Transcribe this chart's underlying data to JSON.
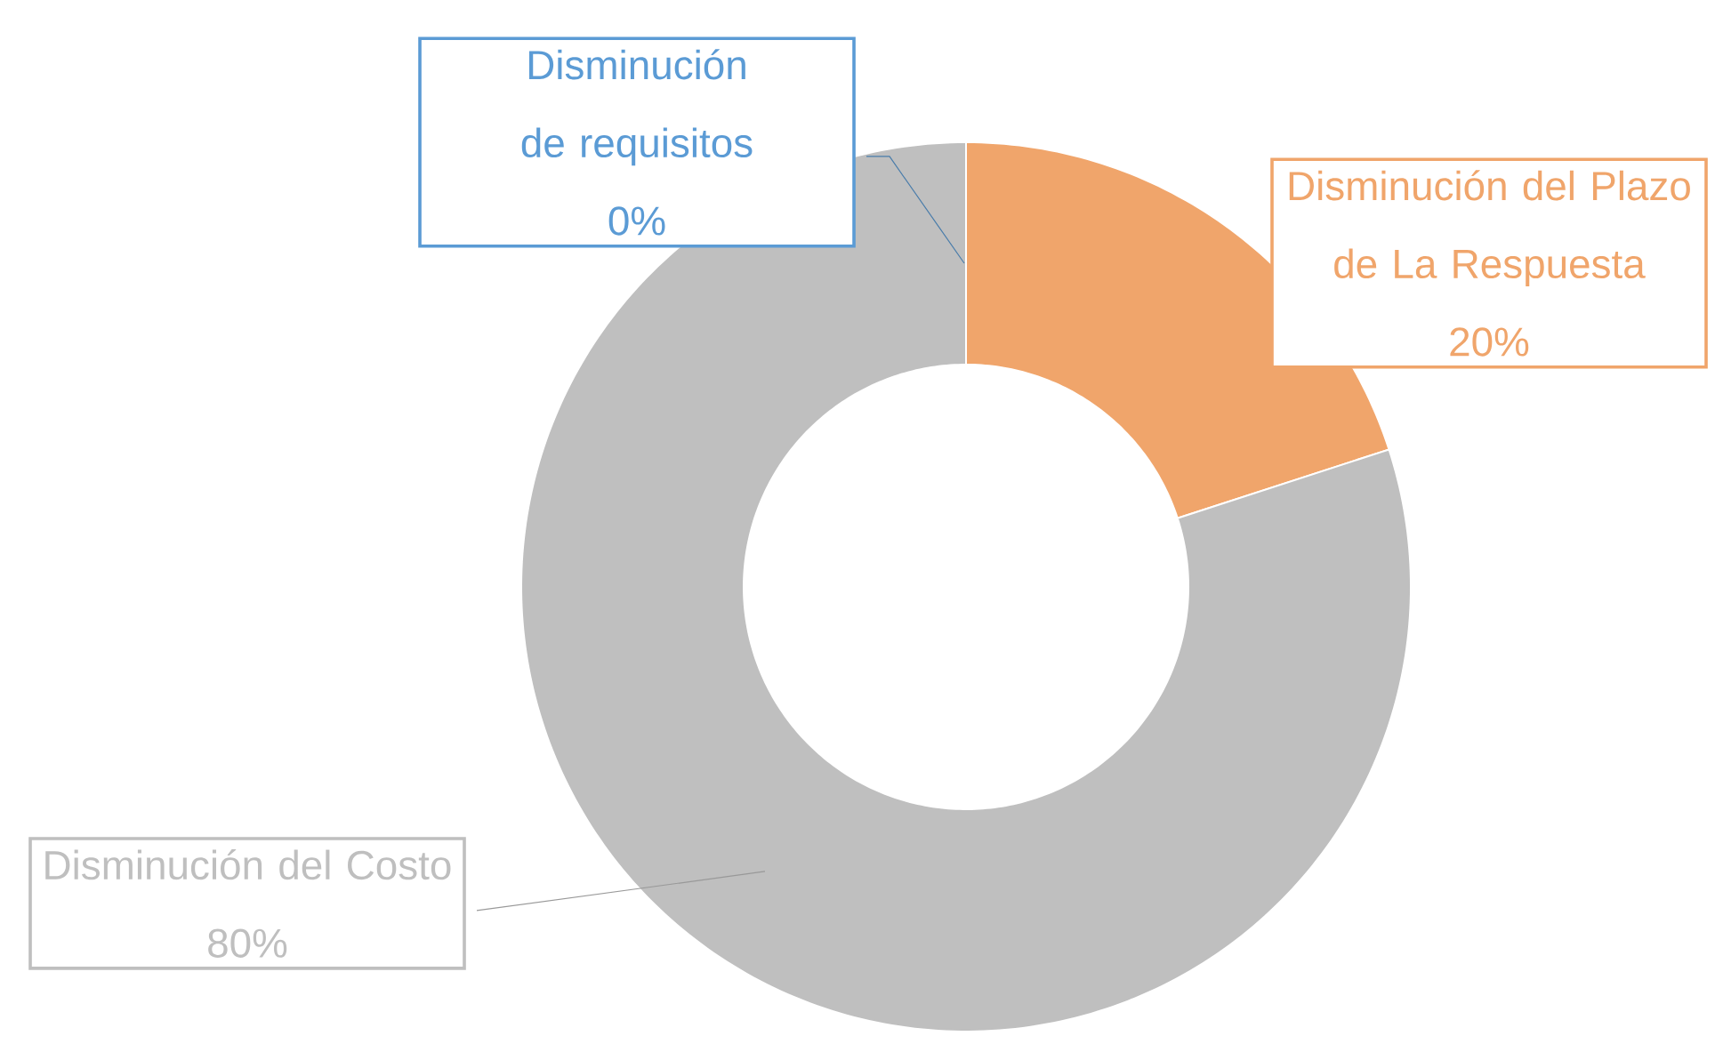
{
  "chart_data": {
    "type": "donut",
    "categories": [
      "Disminución del Plazo de La Respuesta",
      "Disminución del Costo",
      "Disminución de requisitos"
    ],
    "values": [
      20,
      80,
      0
    ],
    "value_labels": [
      "20%",
      "80%",
      "0%"
    ],
    "colors": [
      "#f0a56b",
      "#bfbfbf",
      "#5b9bd5"
    ]
  }
}
